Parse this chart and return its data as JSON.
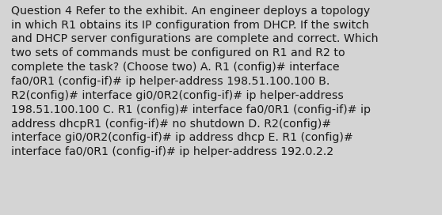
{
  "background_color": "#d4d4d4",
  "text_color": "#1a1a1a",
  "font_size": 10.2,
  "font_family": "DejaVu Sans",
  "lines": [
    "Question 4 Refer to the exhibit. An engineer deploys a topology",
    "in which R1 obtains its IP configuration from DHCP. If the switch",
    "and DHCP server configurations are complete and correct. Which",
    "two sets of commands must be configured on R1 and R2 to",
    "complete the task? (Choose two) A. R1 (config)# interface",
    "fa0/0R1 (config-if)# ip helper-address 198.51.100.100 B.",
    "R2(config)# interface gi0/0R2(config-if)# ip helper-address",
    "198.51.100.100 C. R1 (config)# interface fa0/0R1 (config-if)# ip",
    "address dhcpR1 (config-if)# no shutdown D. R2(config)#",
    "interface gi0/0R2(config-if)# ip address dhcp E. R1 (config)#",
    "interface fa0/0R1 (config-if)# ip helper-address 192.0.2.2"
  ],
  "figsize": [
    5.58,
    2.72
  ],
  "dpi": 100
}
